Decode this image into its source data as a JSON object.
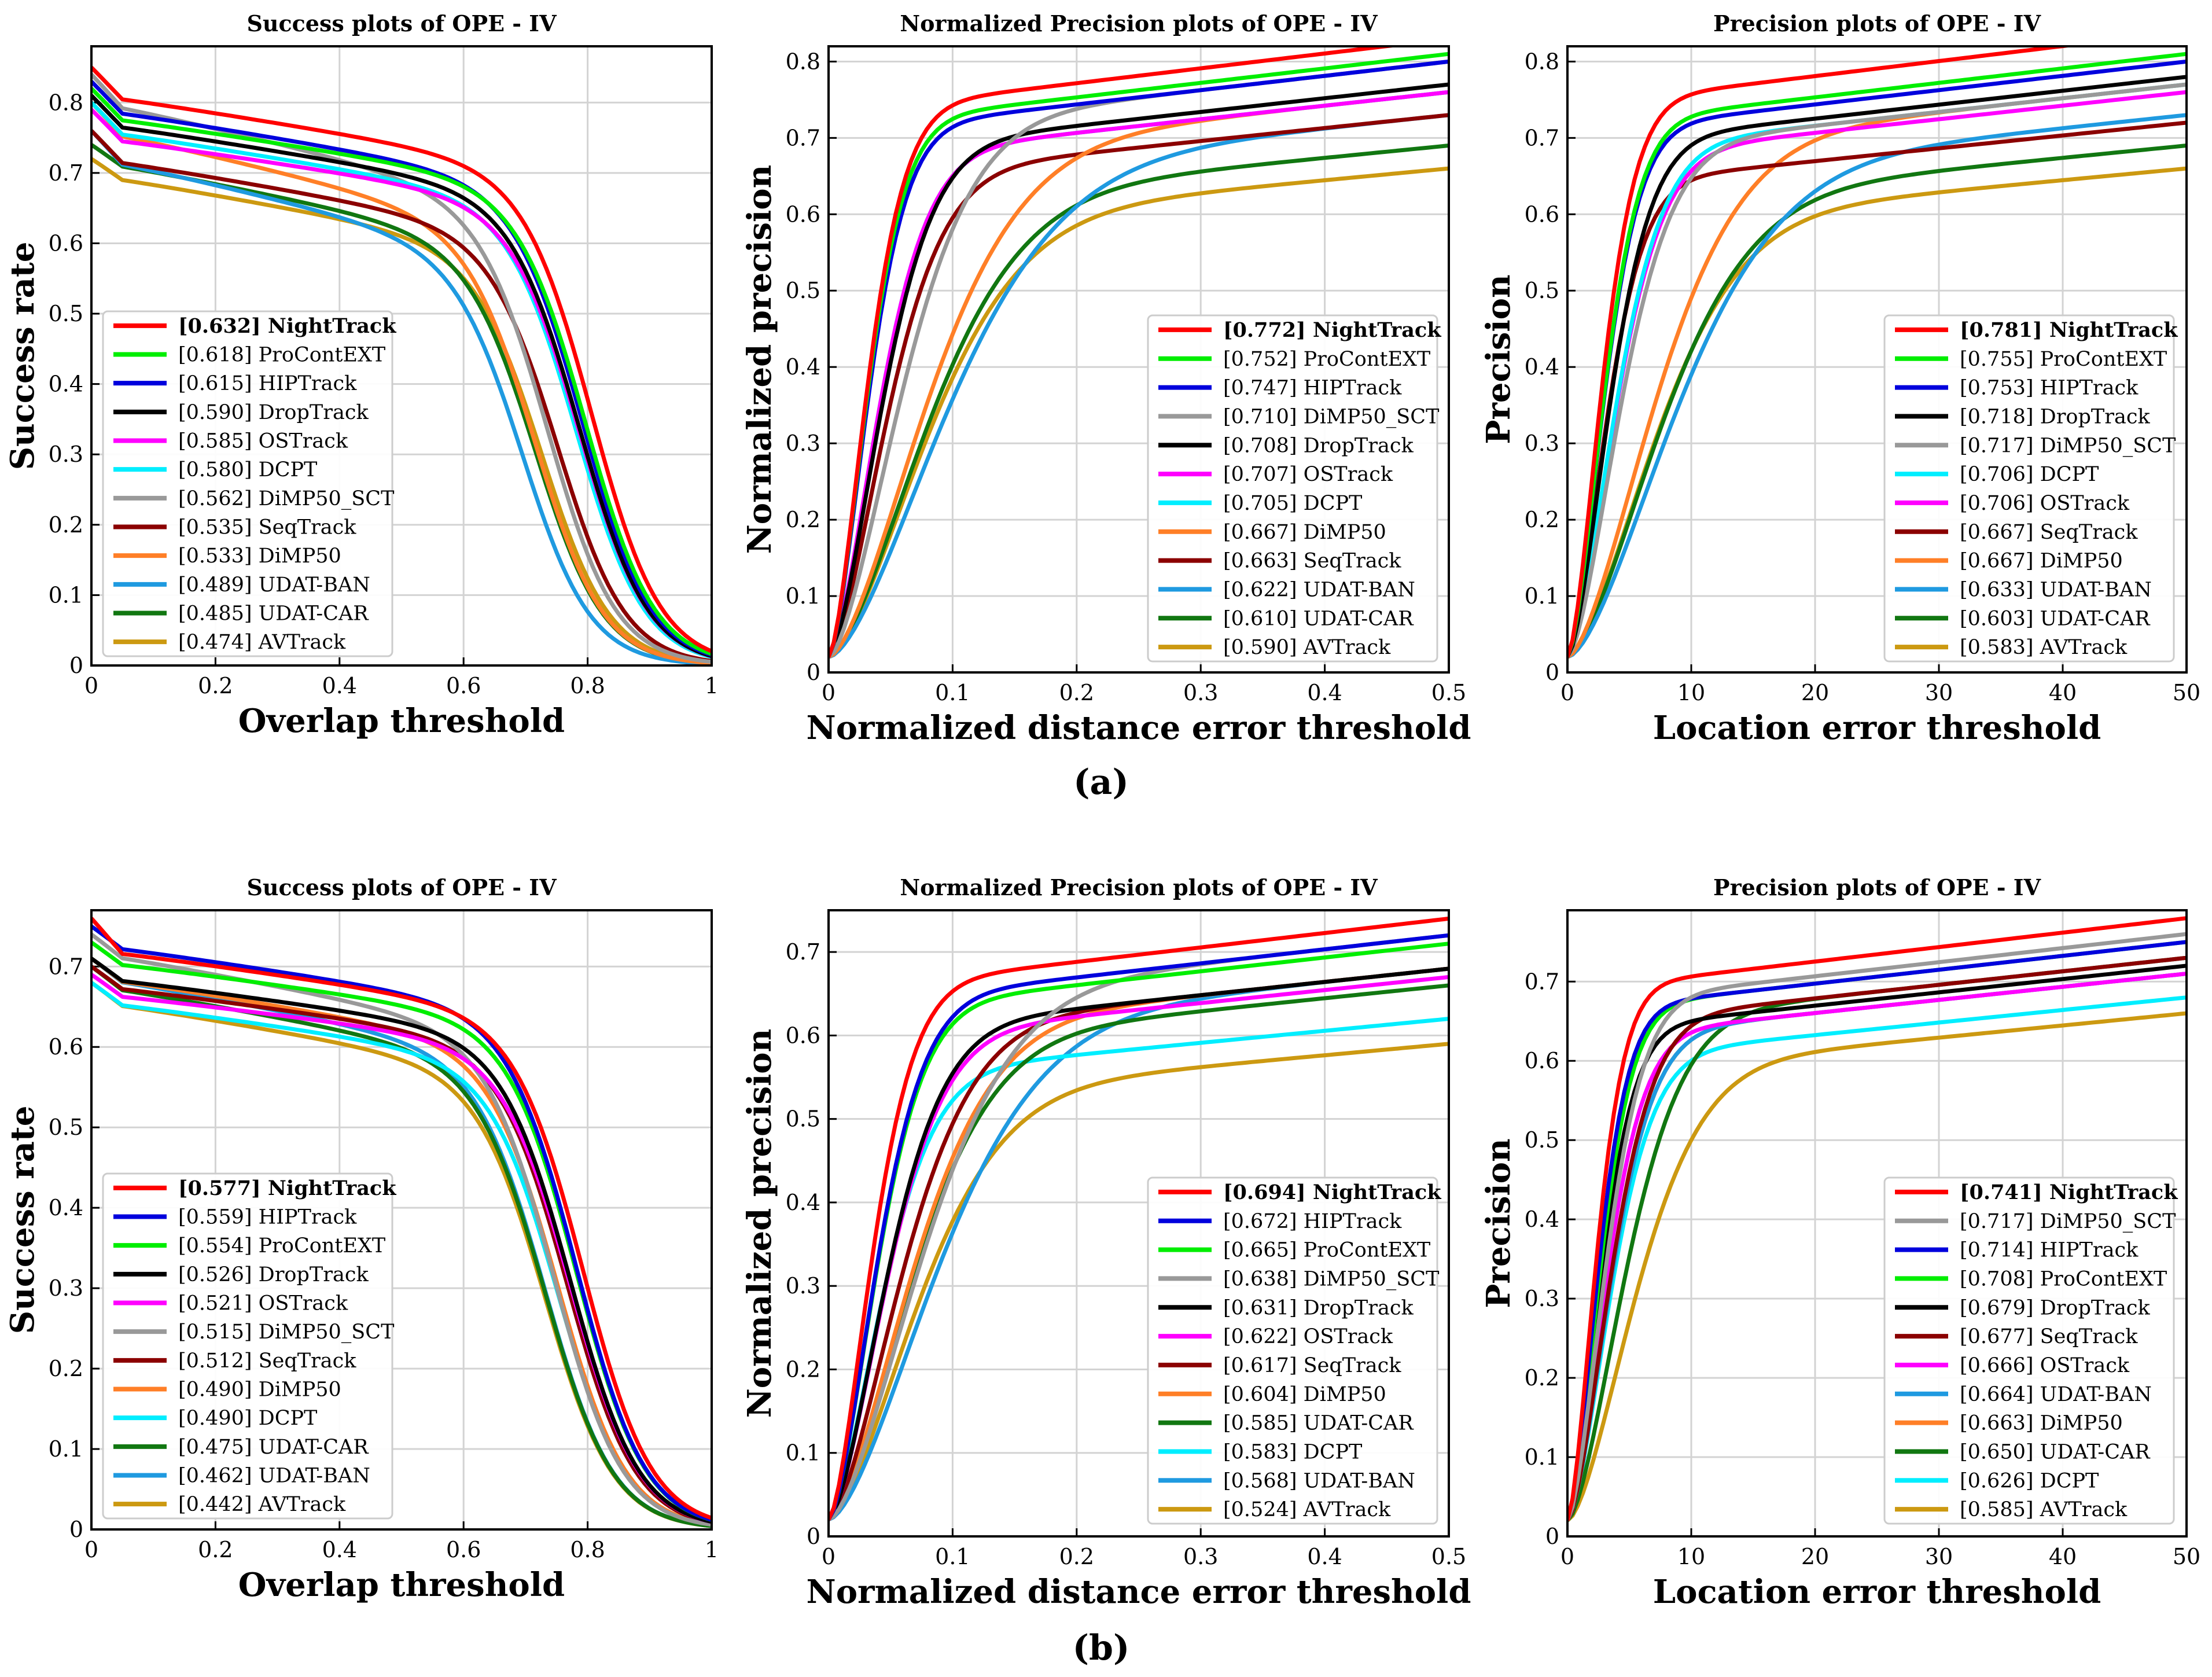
{
  "figure": {
    "captions": [
      "(a)",
      "(b)"
    ],
    "colors": {
      "NightTrack": "#ff0000",
      "ProContEXT": "#00ee00",
      "HIPTrack": "#0000dd",
      "DropTrack": "#000000",
      "OSTrack": "#ff00ff",
      "DCPT": "#00eeff",
      "DiMP50_SCT": "#999999",
      "SeqTrack": "#8b0000",
      "DiMP50": "#ff7f27",
      "UDAT-BAN": "#1f9ae0",
      "UDAT-CAR": "#117711",
      "AVTrack": "#cc9911"
    }
  },
  "chart_data": [
    {
      "type": "line",
      "title": "Success plots of OPE - IV",
      "xlabel": "Overlap threshold",
      "ylabel": "Success rate",
      "xlim": [
        0,
        1
      ],
      "ylim": [
        0,
        0.88
      ],
      "xticks": [
        "0",
        "0.2",
        "0.4",
        "0.6",
        "0.8",
        "1"
      ],
      "yticks": [
        "0",
        "0.1",
        "0.2",
        "0.3",
        "0.4",
        "0.5",
        "0.6",
        "0.7",
        "0.8"
      ],
      "grid": true,
      "legend_position": "lower-left",
      "kind": "success",
      "series": [
        {
          "name": "NightTrack",
          "score": "[0.632]",
          "label": "NightTrack",
          "bold": true,
          "start": 0.85,
          "tail": 0.58
        },
        {
          "name": "ProContEXT",
          "score": "[0.618]",
          "label": "ProContEXT",
          "start": 0.82,
          "tail": 0.56
        },
        {
          "name": "HIPTrack",
          "score": "[0.615]",
          "label": "HIPTrack",
          "start": 0.83,
          "tail": 0.55
        },
        {
          "name": "DropTrack",
          "score": "[0.590]",
          "label": "DropTrack",
          "start": 0.81,
          "tail": 0.54
        },
        {
          "name": "OSTrack",
          "score": "[0.585]",
          "label": "OSTrack",
          "start": 0.79,
          "tail": 0.54
        },
        {
          "name": "DCPT",
          "score": "[0.580]",
          "label": "DCPT",
          "start": 0.8,
          "tail": 0.53
        },
        {
          "name": "DiMP50_SCT",
          "score": "[0.562]",
          "label": "DiMP50_SCT",
          "start": 0.84,
          "tail": 0.44
        },
        {
          "name": "SeqTrack",
          "score": "[0.535]",
          "label": "SeqTrack",
          "start": 0.76,
          "tail": 0.47
        },
        {
          "name": "DiMP50",
          "score": "[0.533]",
          "label": "DiMP50",
          "start": 0.8,
          "tail": 0.4
        },
        {
          "name": "UDAT-BAN",
          "score": "[0.489]",
          "label": "UDAT-BAN",
          "start": 0.76,
          "tail": 0.36
        },
        {
          "name": "UDAT-CAR",
          "score": "[0.485]",
          "label": "UDAT-CAR",
          "start": 0.74,
          "tail": 0.4
        },
        {
          "name": "AVTrack",
          "score": "[0.474]",
          "label": "AVTrack",
          "start": 0.72,
          "tail": 0.42
        }
      ]
    },
    {
      "type": "line",
      "title": "Normalized Precision plots of OPE - IV",
      "xlabel": "Normalized distance error threshold",
      "ylabel": "Normalized precision",
      "xlim": [
        0,
        0.5
      ],
      "ylim": [
        0,
        0.82
      ],
      "xticks": [
        "0",
        "0.1",
        "0.2",
        "0.3",
        "0.4",
        "0.5"
      ],
      "yticks": [
        "0",
        "0.1",
        "0.2",
        "0.3",
        "0.4",
        "0.5",
        "0.6",
        "0.7",
        "0.8"
      ],
      "grid": true,
      "legend_position": "lower-right",
      "kind": "precision",
      "series": [
        {
          "name": "NightTrack",
          "score": "[0.772]",
          "label": "NightTrack",
          "bold": true,
          "end": 0.83,
          "k": 0.04
        },
        {
          "name": "ProContEXT",
          "score": "[0.752]",
          "label": "ProContEXT",
          "end": 0.81,
          "k": 0.04
        },
        {
          "name": "HIPTrack",
          "score": "[0.747]",
          "label": "HIPTrack",
          "end": 0.8,
          "k": 0.041
        },
        {
          "name": "DiMP50_SCT",
          "score": "[0.710]",
          "label": "DiMP50_SCT",
          "end": 0.8,
          "k": 0.075
        },
        {
          "name": "DropTrack",
          "score": "[0.708]",
          "label": "DropTrack",
          "end": 0.77,
          "k": 0.055
        },
        {
          "name": "OSTrack",
          "score": "[0.707]",
          "label": "OSTrack",
          "end": 0.76,
          "k": 0.052
        },
        {
          "name": "DCPT",
          "score": "[0.705]",
          "label": "DCPT",
          "end": 0.76,
          "k": 0.052
        },
        {
          "name": "DiMP50",
          "score": "[0.667]",
          "label": "DiMP50",
          "end": 0.76,
          "k": 0.1
        },
        {
          "name": "SeqTrack",
          "score": "[0.663]",
          "label": "SeqTrack",
          "end": 0.73,
          "k": 0.06
        },
        {
          "name": "UDAT-BAN",
          "score": "[0.622]",
          "label": "UDAT-BAN",
          "end": 0.73,
          "k": 0.12
        },
        {
          "name": "UDAT-CAR",
          "score": "[0.610]",
          "label": "UDAT-CAR",
          "end": 0.69,
          "k": 0.1
        },
        {
          "name": "AVTrack",
          "score": "[0.590]",
          "label": "AVTrack",
          "end": 0.66,
          "k": 0.1
        }
      ]
    },
    {
      "type": "line",
      "title": "Precision plots of OPE - IV",
      "xlabel": "Location error threshold",
      "ylabel": "Precision",
      "xlim": [
        0,
        50
      ],
      "ylim": [
        0,
        0.82
      ],
      "xticks": [
        "0",
        "10",
        "20",
        "30",
        "40",
        "50"
      ],
      "yticks": [
        "0",
        "0.1",
        "0.2",
        "0.3",
        "0.4",
        "0.5",
        "0.6",
        "0.7",
        "0.8"
      ],
      "grid": true,
      "legend_position": "lower-right",
      "kind": "precision",
      "series": [
        {
          "name": "NightTrack",
          "score": "[0.781]",
          "label": "NightTrack",
          "bold": true,
          "end": 0.84,
          "k": 3.6
        },
        {
          "name": "ProContEXT",
          "score": "[0.755]",
          "label": "ProContEXT",
          "end": 0.81,
          "k": 3.8
        },
        {
          "name": "HIPTrack",
          "score": "[0.753]",
          "label": "HIPTrack",
          "end": 0.8,
          "k": 3.8
        },
        {
          "name": "DropTrack",
          "score": "[0.718]",
          "label": "DropTrack",
          "end": 0.78,
          "k": 4.4
        },
        {
          "name": "DiMP50_SCT",
          "score": "[0.717]",
          "label": "DiMP50_SCT",
          "end": 0.77,
          "k": 5.5
        },
        {
          "name": "DCPT",
          "score": "[0.706]",
          "label": "DCPT",
          "end": 0.77,
          "k": 5.0
        },
        {
          "name": "OSTrack",
          "score": "[0.706]",
          "label": "OSTrack",
          "end": 0.76,
          "k": 5.0
        },
        {
          "name": "SeqTrack",
          "score": "[0.667]",
          "label": "SeqTrack",
          "end": 0.72,
          "k": 4.0
        },
        {
          "name": "DiMP50",
          "score": "[0.667]",
          "label": "DiMP50",
          "end": 0.77,
          "k": 9.0
        },
        {
          "name": "UDAT-BAN",
          "score": "[0.633]",
          "label": "UDAT-BAN",
          "end": 0.73,
          "k": 11.0
        },
        {
          "name": "UDAT-CAR",
          "score": "[0.603]",
          "label": "UDAT-CAR",
          "end": 0.69,
          "k": 9.5
        },
        {
          "name": "AVTrack",
          "score": "[0.583]",
          "label": "AVTrack",
          "end": 0.66,
          "k": 9.0
        }
      ]
    },
    {
      "type": "line",
      "title": "Success plots of OPE - IV",
      "xlabel": "Overlap threshold",
      "ylabel": "Success rate",
      "xlim": [
        0,
        1
      ],
      "ylim": [
        0,
        0.77
      ],
      "xticks": [
        "0",
        "0.2",
        "0.4",
        "0.6",
        "0.8",
        "1"
      ],
      "yticks": [
        "0",
        "0.1",
        "0.2",
        "0.3",
        "0.4",
        "0.5",
        "0.6",
        "0.7"
      ],
      "grid": true,
      "legend_position": "lower-left",
      "kind": "success",
      "series": [
        {
          "name": "NightTrack",
          "score": "[0.577]",
          "label": "NightTrack",
          "bold": true,
          "start": 0.76,
          "tail": 0.55
        },
        {
          "name": "HIPTrack",
          "score": "[0.559]",
          "label": "HIPTrack",
          "start": 0.75,
          "tail": 0.53
        },
        {
          "name": "ProContEXT",
          "score": "[0.554]",
          "label": "ProContEXT",
          "start": 0.73,
          "tail": 0.53
        },
        {
          "name": "DropTrack",
          "score": "[0.526]",
          "label": "DropTrack",
          "start": 0.71,
          "tail": 0.51
        },
        {
          "name": "OSTrack",
          "score": "[0.521]",
          "label": "OSTrack",
          "start": 0.69,
          "tail": 0.51
        },
        {
          "name": "DiMP50_SCT",
          "score": "[0.515]",
          "label": "DiMP50_SCT",
          "start": 0.74,
          "tail": 0.46
        },
        {
          "name": "SeqTrack",
          "score": "[0.512]",
          "label": "SeqTrack",
          "start": 0.7,
          "tail": 0.5
        },
        {
          "name": "DiMP50",
          "score": "[0.490]",
          "label": "DiMP50",
          "start": 0.71,
          "tail": 0.47
        },
        {
          "name": "DCPT",
          "score": "[0.490]",
          "label": "DCPT",
          "start": 0.68,
          "tail": 0.47
        },
        {
          "name": "UDAT-CAR",
          "score": "[0.475]",
          "label": "UDAT-CAR",
          "start": 0.7,
          "tail": 0.43
        },
        {
          "name": "UDAT-BAN",
          "score": "[0.462]",
          "label": "UDAT-BAN",
          "start": 0.71,
          "tail": 0.43
        },
        {
          "name": "AVTrack",
          "score": "[0.442]",
          "label": "AVTrack",
          "start": 0.68,
          "tail": 0.43
        }
      ]
    },
    {
      "type": "line",
      "title": "Normalized Precision plots of OPE - IV",
      "xlabel": "Normalized distance error threshold",
      "ylabel": "Normalized precision",
      "xlim": [
        0,
        0.5
      ],
      "ylim": [
        0,
        0.75
      ],
      "xticks": [
        "0",
        "0.1",
        "0.2",
        "0.3",
        "0.4",
        "0.5"
      ],
      "yticks": [
        "0",
        "0.1",
        "0.2",
        "0.3",
        "0.4",
        "0.5",
        "0.6",
        "0.7"
      ],
      "grid": true,
      "legend_position": "lower-right",
      "kind": "precision",
      "series": [
        {
          "name": "NightTrack",
          "score": "[0.694]",
          "label": "NightTrack",
          "bold": true,
          "end": 0.74,
          "k": 0.045
        },
        {
          "name": "HIPTrack",
          "score": "[0.672]",
          "label": "HIPTrack",
          "end": 0.72,
          "k": 0.05
        },
        {
          "name": "ProContEXT",
          "score": "[0.665]",
          "label": "ProContEXT",
          "end": 0.71,
          "k": 0.05
        },
        {
          "name": "DiMP50_SCT",
          "score": "[0.638]",
          "label": "DiMP50_SCT",
          "end": 0.72,
          "k": 0.095
        },
        {
          "name": "DropTrack",
          "score": "[0.631]",
          "label": "DropTrack",
          "end": 0.68,
          "k": 0.06
        },
        {
          "name": "OSTrack",
          "score": "[0.622]",
          "label": "OSTrack",
          "end": 0.67,
          "k": 0.06
        },
        {
          "name": "SeqTrack",
          "score": "[0.617]",
          "label": "SeqTrack",
          "end": 0.68,
          "k": 0.075
        },
        {
          "name": "DiMP50",
          "score": "[0.604]",
          "label": "DiMP50",
          "end": 0.68,
          "k": 0.085
        },
        {
          "name": "UDAT-CAR",
          "score": "[0.585]",
          "label": "UDAT-CAR",
          "end": 0.66,
          "k": 0.085
        },
        {
          "name": "DCPT",
          "score": "[0.583]",
          "label": "DCPT",
          "end": 0.62,
          "k": 0.055
        },
        {
          "name": "UDAT-BAN",
          "score": "[0.568]",
          "label": "UDAT-BAN",
          "end": 0.68,
          "k": 0.11
        },
        {
          "name": "AVTrack",
          "score": "[0.524]",
          "label": "AVTrack",
          "end": 0.59,
          "k": 0.09
        }
      ]
    },
    {
      "type": "line",
      "title": "Precision plots of OPE - IV",
      "xlabel": "Location error threshold",
      "ylabel": "Precision",
      "xlim": [
        0,
        50
      ],
      "ylim": [
        0,
        0.79
      ],
      "xticks": [
        "0",
        "10",
        "20",
        "30",
        "40",
        "50"
      ],
      "yticks": [
        "0",
        "0.1",
        "0.2",
        "0.3",
        "0.4",
        "0.5",
        "0.6",
        "0.7"
      ],
      "grid": true,
      "legend_position": "lower-right",
      "kind": "precision",
      "series": [
        {
          "name": "NightTrack",
          "score": "[0.741]",
          "label": "NightTrack",
          "bold": true,
          "end": 0.78,
          "k": 3.0
        },
        {
          "name": "DiMP50_SCT",
          "score": "[0.717]",
          "label": "DiMP50_SCT",
          "end": 0.76,
          "k": 4.0
        },
        {
          "name": "HIPTrack",
          "score": "[0.714]",
          "label": "HIPTrack",
          "end": 0.75,
          "k": 3.2
        },
        {
          "name": "ProContEXT",
          "score": "[0.708]",
          "label": "ProContEXT",
          "end": 0.75,
          "k": 3.4
        },
        {
          "name": "DropTrack",
          "score": "[0.679]",
          "label": "DropTrack",
          "end": 0.72,
          "k": 3.5
        },
        {
          "name": "SeqTrack",
          "score": "[0.677]",
          "label": "SeqTrack",
          "end": 0.73,
          "k": 4.5
        },
        {
          "name": "OSTrack",
          "score": "[0.666]",
          "label": "OSTrack",
          "end": 0.71,
          "k": 4.0
        },
        {
          "name": "UDAT-BAN",
          "score": "[0.664]",
          "label": "UDAT-BAN",
          "end": 0.71,
          "k": 4.5
        },
        {
          "name": "DiMP50",
          "score": "[0.663]",
          "label": "DiMP50",
          "end": 0.71,
          "k": 4.5
        },
        {
          "name": "UDAT-CAR",
          "score": "[0.650]",
          "label": "UDAT-CAR",
          "end": 0.73,
          "k": 6.0
        },
        {
          "name": "DCPT",
          "score": "[0.626]",
          "label": "DCPT",
          "end": 0.68,
          "k": 4.5
        },
        {
          "name": "AVTrack",
          "score": "[0.585]",
          "label": "AVTrack",
          "end": 0.66,
          "k": 7.0
        }
      ]
    }
  ]
}
